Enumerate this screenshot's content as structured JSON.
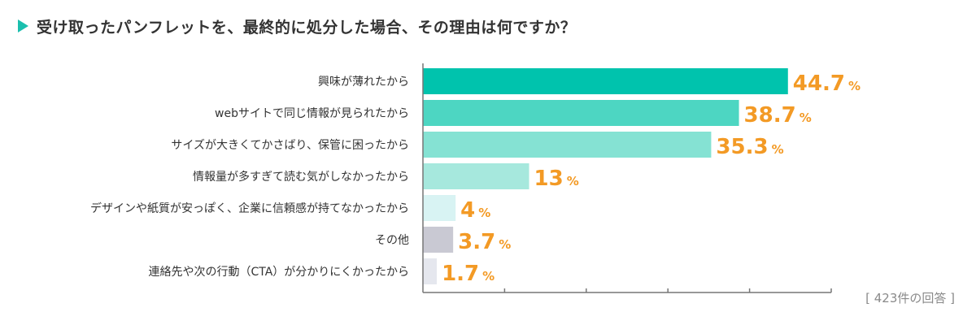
{
  "title": "受け取ったパンフレットを、最終的に処分した場合、その理由は何ですか？",
  "note": "[ 423件の回答 ]",
  "percent_suffix": "%",
  "colors": {
    "title_marker": "#1bbfae",
    "value_text": "#f39a25",
    "axis": "#777777",
    "bars": [
      "#00c3ad",
      "#4dd6c2",
      "#85e2d3",
      "#a6e8dd",
      "#d8f3f3",
      "#c9c9d3",
      "#e5e7ee"
    ]
  },
  "chart_data": {
    "type": "bar",
    "orientation": "horizontal",
    "categories": [
      "興味が薄れたから",
      "webサイトで同じ情報が見られたから",
      "サイズが大きくてかさばり、保管に困ったから",
      "情報量が多すぎて読む気がしなかったから",
      "デザインや紙質が安っぽく、企業に信頼感が持てなかったから",
      "その他",
      "連絡先や次の行動（CTA）が分かりにくかったから"
    ],
    "values": [
      44.7,
      38.7,
      35.3,
      13,
      4,
      3.7,
      1.7
    ],
    "value_labels": [
      "44.7",
      "38.7",
      "35.3",
      "13",
      "4",
      "3.7",
      "1.7"
    ],
    "xlim": [
      0,
      50
    ],
    "tick_count": 5,
    "grid": false,
    "legend": "none"
  }
}
